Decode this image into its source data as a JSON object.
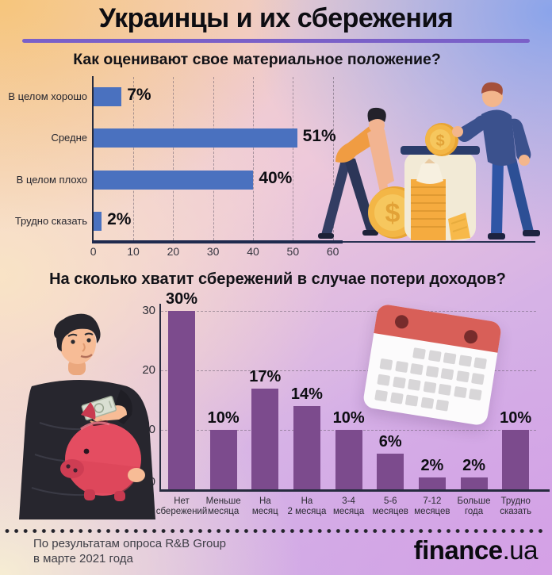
{
  "page": {
    "title": "Украинцы и их сбережения"
  },
  "theme": {
    "underline_color": "#7a60c8",
    "bar_blue": "#4a71bf",
    "bar_purple": "#7c4b8d",
    "axis_color": "#262b3e",
    "bg_corners": [
      "#f6c578",
      "#85a2eb",
      "#f8f0d2",
      "#d6a0e6"
    ]
  },
  "illustrations": {
    "chart1": "people-putting-coins-in-jar-illustration",
    "chart2": "man-with-piggy-bank-illustration",
    "calendar": "calendar-icon"
  },
  "footer": {
    "source_line1": "По результатам опроса R&B Group",
    "source_line2": "в марте 2021 года",
    "logo_bold": "finance",
    "logo_suffix": ".ua"
  },
  "chart_data": [
    {
      "type": "bar",
      "orientation": "horizontal",
      "title": "Как оценивают свое материальное положение?",
      "categories": [
        "В целом хорошо",
        "Средне",
        "В целом плохо",
        "Трудно сказать"
      ],
      "values": [
        7,
        51,
        40,
        2
      ],
      "labels": [
        "7%",
        "51%",
        "40%",
        "2%"
      ],
      "xticks": [
        0,
        10,
        20,
        30,
        40,
        50,
        60
      ],
      "xlim": [
        0,
        60
      ],
      "bar_color": "#4a71bf",
      "grid": "dashed-vertical",
      "legend": "none"
    },
    {
      "type": "bar",
      "orientation": "vertical",
      "title": "На сколько хватит сбережений в случае потери доходов?",
      "categories": [
        "Нет сбережений",
        "Меньше месяца",
        "На месяц",
        "На 2 месяца",
        "3-4 месяца",
        "5-6 месяцев",
        "7-12 месяцев",
        "Больше года",
        "Трудно сказать"
      ],
      "category_lines": [
        [
          "Нет",
          "сбережений"
        ],
        [
          "Меньше",
          "месяца"
        ],
        [
          "На",
          "месяц"
        ],
        [
          "На",
          "2 месяца"
        ],
        [
          "3-4",
          "месяца"
        ],
        [
          "5-6",
          "месяцев"
        ],
        [
          "7-12",
          "месяцев"
        ],
        [
          "Больше",
          "года"
        ],
        [
          "Трудно",
          "сказать"
        ]
      ],
      "values": [
        30,
        10,
        17,
        14,
        10,
        6,
        2,
        2,
        10
      ],
      "labels": [
        "30%",
        "10%",
        "17%",
        "14%",
        "10%",
        "6%",
        "2%",
        "2%",
        "10%"
      ],
      "yticks": [
        0,
        10,
        20,
        30
      ],
      "ylim": [
        0,
        32
      ],
      "bar_color": "#7c4b8d",
      "grid": "dashed-horizontal",
      "legend": "none"
    }
  ]
}
